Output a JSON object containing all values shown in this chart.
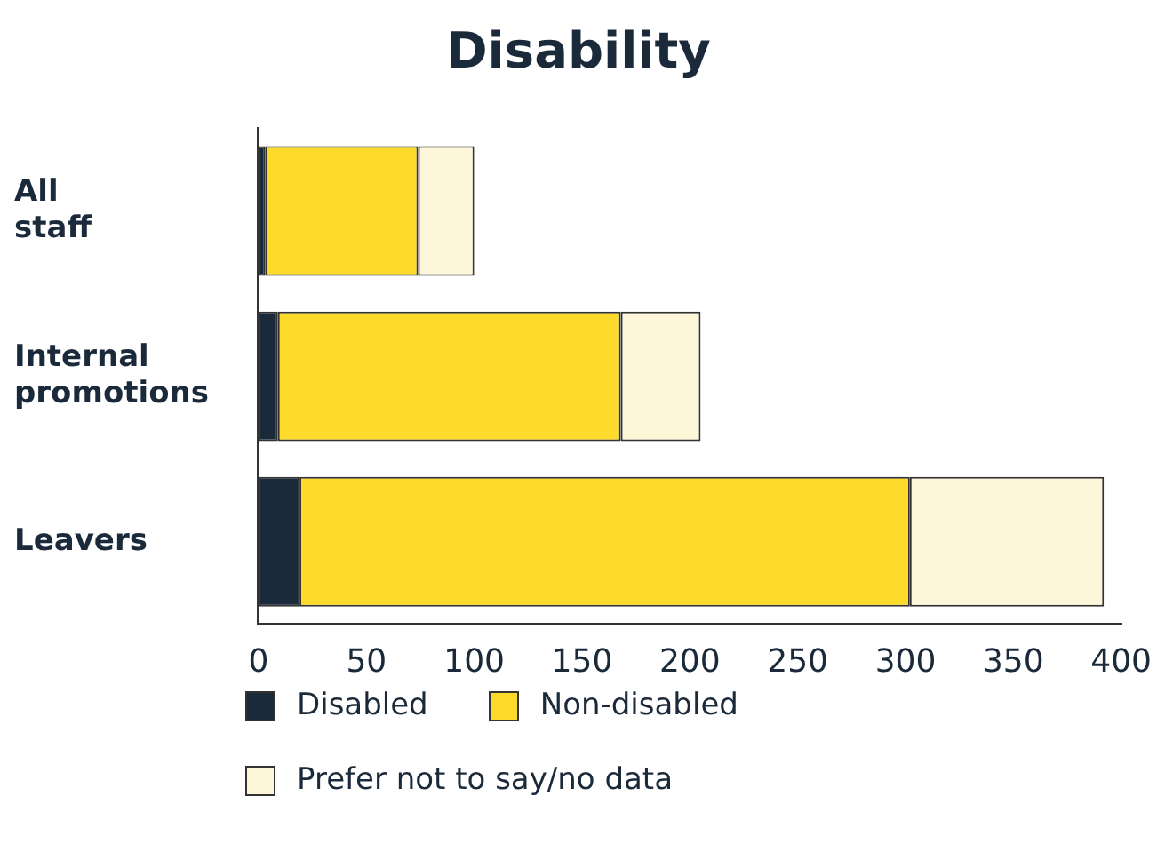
{
  "chart_data": {
    "type": "bar",
    "title": "Disability",
    "orientation": "horizontal",
    "stacked": true,
    "categories": [
      "All staff",
      "Internal promotions",
      "Leavers"
    ],
    "series": [
      {
        "name": "Disabled",
        "color": "#1b2a3a",
        "values": [
          3,
          9,
          19
        ]
      },
      {
        "name": "Non-disabled",
        "color": "#fedb2a",
        "values": [
          71,
          159,
          283
        ]
      },
      {
        "name": "Prefer not to say/no data",
        "color": "#fdf6d8",
        "values": [
          26,
          37,
          90
        ]
      }
    ],
    "xlim": [
      0,
      400
    ],
    "xticks": [
      0,
      50,
      100,
      150,
      200,
      250,
      300,
      350,
      400
    ],
    "grid": false,
    "legend": "bottom"
  }
}
